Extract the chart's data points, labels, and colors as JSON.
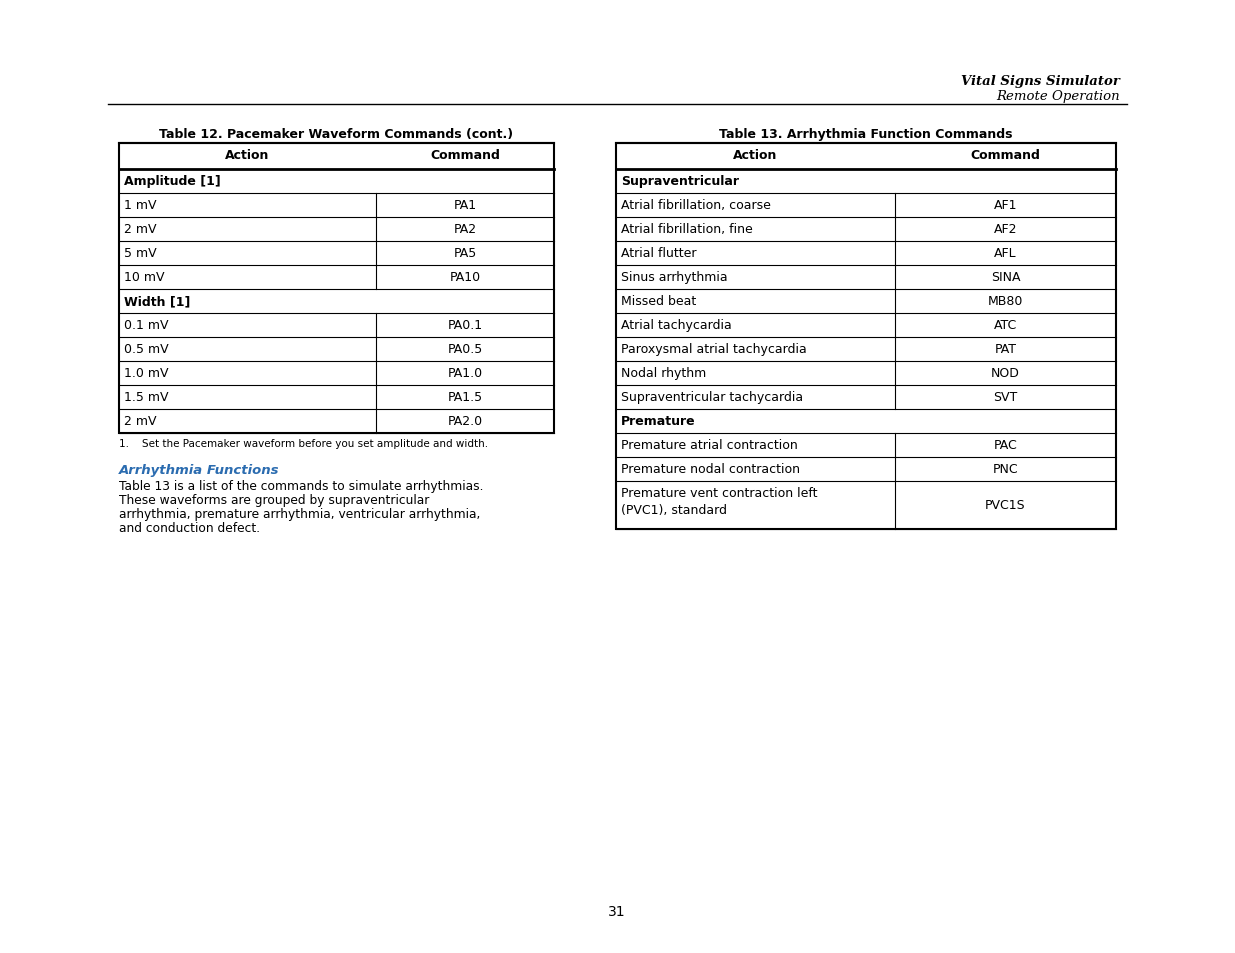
{
  "page_number": "31",
  "header_title": "Vital Signs Simulator",
  "header_subtitle": "Remote Operation",
  "table12_title": "Table 12. Pacemaker Waveform Commands (cont.)",
  "table12_col_headers": [
    "Action",
    "Command"
  ],
  "table12_rows": [
    {
      "type": "section",
      "action": "Amplitude [1]",
      "command": ""
    },
    {
      "type": "data",
      "action": "1 mV",
      "command": "PA1"
    },
    {
      "type": "data",
      "action": "2 mV",
      "command": "PA2"
    },
    {
      "type": "data",
      "action": "5 mV",
      "command": "PA5"
    },
    {
      "type": "data",
      "action": "10 mV",
      "command": "PA10"
    },
    {
      "type": "section",
      "action": "Width [1]",
      "command": ""
    },
    {
      "type": "data",
      "action": "0.1 mV",
      "command": "PA0.1"
    },
    {
      "type": "data",
      "action": "0.5 mV",
      "command": "PA0.5"
    },
    {
      "type": "data",
      "action": "1.0 mV",
      "command": "PA1.0"
    },
    {
      "type": "data",
      "action": "1.5 mV",
      "command": "PA1.5"
    },
    {
      "type": "data",
      "action": "2 mV",
      "command": "PA2.0"
    }
  ],
  "table12_footnote": "1.    Set the Pacemaker waveform before you set amplitude and width.",
  "arrhythmia_heading": "Arrhythmia Functions",
  "arrhythmia_text_lines": [
    "Table 13 is a list of the commands to simulate arrhythmias.",
    "These waveforms are grouped by supraventricular",
    "arrhythmia, premature arrhythmia, ventricular arrhythmia,",
    "and conduction defect."
  ],
  "table13_title": "Table 13. Arrhythmia Function Commands",
  "table13_col_headers": [
    "Action",
    "Command"
  ],
  "table13_rows": [
    {
      "type": "section",
      "action": "Supraventricular",
      "command": ""
    },
    {
      "type": "data",
      "action": "Atrial fibrillation, coarse",
      "command": "AF1"
    },
    {
      "type": "data",
      "action": "Atrial fibrillation, fine",
      "command": "AF2"
    },
    {
      "type": "data",
      "action": "Atrial flutter",
      "command": "AFL"
    },
    {
      "type": "data",
      "action": "Sinus arrhythmia",
      "command": "SINA"
    },
    {
      "type": "data",
      "action": "Missed beat",
      "command": "MB80"
    },
    {
      "type": "data",
      "action": "Atrial tachycardia",
      "command": "ATC"
    },
    {
      "type": "data",
      "action": "Paroxysmal atrial tachycardia",
      "command": "PAT"
    },
    {
      "type": "data",
      "action": "Nodal rhythm",
      "command": "NOD"
    },
    {
      "type": "data",
      "action": "Supraventricular tachycardia",
      "command": "SVT"
    },
    {
      "type": "section",
      "action": "Premature",
      "command": ""
    },
    {
      "type": "data",
      "action": "Premature atrial contraction",
      "command": "PAC"
    },
    {
      "type": "data",
      "action": "Premature nodal contraction",
      "command": "PNC"
    },
    {
      "type": "data2",
      "action": "Premature vent contraction left\n(PVC1), standard",
      "command": "PVC1S"
    }
  ],
  "bg_color": "#ffffff",
  "text_color": "#000000",
  "header_color": "#3C6E9B",
  "arrhythmia_heading_color": "#1B6B9C",
  "table_border_color": "#000000"
}
